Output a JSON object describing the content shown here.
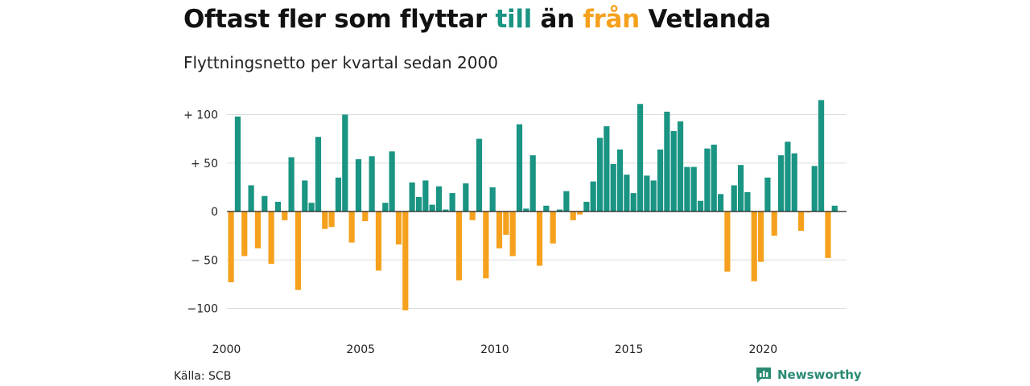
{
  "title": {
    "part1": "Oftast fler som flyttar ",
    "word_to": "till",
    "part2": " än ",
    "word_from": "från",
    "part3": " Vetlanda"
  },
  "subtitle": "Flyttningsnetto per kvartal sedan 2000",
  "source": "Källa: SCB",
  "brand": {
    "name": "Newsworthy",
    "icon": "newsworthy-logo-icon"
  },
  "colors": {
    "positive": "#1a9483",
    "negative": "#f5a11e",
    "grid": "#dddddd",
    "axis": "#222222"
  },
  "chart_data": {
    "type": "bar",
    "title": "Oftast fler som flyttar till än från Vetlanda",
    "subtitle": "Flyttningsnetto per kvartal sedan 2000",
    "ylim": [
      -110,
      118
    ],
    "yticks": [
      {
        "value": 100,
        "label": "+ 100"
      },
      {
        "value": 50,
        "label": "+  50"
      },
      {
        "value": 0,
        "label": "0"
      },
      {
        "value": -50,
        "label": "− 50"
      },
      {
        "value": -100,
        "label": "−100"
      }
    ],
    "xticks": [
      "2000",
      "2005",
      "2010",
      "2015",
      "2020"
    ],
    "grid": true,
    "x_start": "2000 Q1",
    "values": [
      -73,
      98,
      -46,
      27,
      -38,
      16,
      -54,
      10,
      -9,
      56,
      -81,
      32,
      9,
      77,
      -18,
      -16,
      35,
      100,
      -32,
      54,
      -10,
      57,
      -61,
      9,
      62,
      -34,
      -102,
      30,
      15,
      32,
      7,
      26,
      2,
      19,
      -71,
      29,
      -9,
      75,
      -69,
      25,
      -38,
      -24,
      -46,
      90,
      3,
      58,
      -56,
      6,
      -33,
      2,
      21,
      -9,
      -3,
      10,
      31,
      76,
      88,
      49,
      64,
      38,
      19,
      111,
      37,
      32,
      64,
      103,
      83,
      93,
      46,
      46,
      11,
      65,
      69,
      18,
      -62,
      27,
      48,
      20,
      -72,
      -52,
      35,
      -25,
      58,
      72,
      60,
      -20,
      -1,
      47,
      115,
      -48,
      6
    ]
  }
}
